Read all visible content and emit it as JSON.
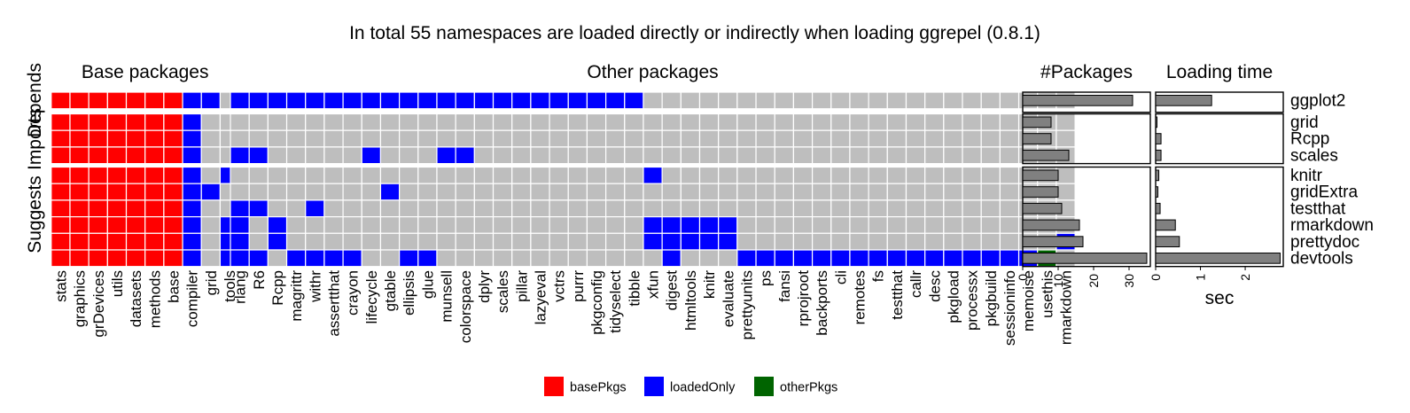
{
  "chart_data": {
    "type": "heatmap",
    "title": "In total 55 namespaces are loaded directly or indirectly when loading ggrepel (0.8.1)",
    "colors": {
      "basePkgs": "#ff0000",
      "loadedOnly": "#0000ff",
      "otherPkgs": "#006400",
      "empty": "#bebebe"
    },
    "legend": {
      "placement": "bottom",
      "entries": [
        "basePkgs",
        "loadedOnly",
        "otherPkgs"
      ]
    },
    "groups": [
      {
        "label": "Depends",
        "rows": [
          "ggplot2"
        ]
      },
      {
        "label": "Imports",
        "rows": [
          "grid",
          "Rcpp",
          "scales"
        ]
      },
      {
        "label": "Suggests",
        "rows": [
          "knitr",
          "gridExtra",
          "testthat",
          "rmarkdown",
          "prettydoc",
          "devtools"
        ]
      }
    ],
    "column_panels": [
      {
        "label": "Base packages",
        "columns": [
          "stats",
          "graphics",
          "grDevices",
          "utils",
          "datasets",
          "methods",
          "base",
          "compiler",
          "grid",
          "tools"
        ]
      },
      {
        "label": "Other packages",
        "columns": [
          "rlang",
          "R6",
          "Rcpp",
          "magrittr",
          "withr",
          "assertthat",
          "crayon",
          "lifecycle",
          "gtable",
          "ellipsis",
          "glue",
          "munsell",
          "colorspace",
          "dplyr",
          "scales",
          "pillar",
          "lazyeval",
          "vctrs",
          "purrr",
          "pkgconfig",
          "tidyselect",
          "tibble",
          "xfun",
          "digest",
          "htmltools",
          "knitr",
          "evaluate",
          "prettyunits",
          "ps",
          "fansi",
          "rprojroot",
          "backports",
          "cli",
          "remotes",
          "fs",
          "testthat",
          "callr",
          "desc",
          "pkgload",
          "processx",
          "pkgbuild",
          "sessioninfo",
          "memoise",
          "usethis",
          "rmarkdown"
        ]
      }
    ],
    "cells": {
      "ggplot2": {
        "basePkgs": [
          "stats",
          "graphics",
          "grDevices",
          "utils",
          "datasets",
          "methods",
          "base"
        ],
        "loadedOnly": [
          "compiler",
          "grid",
          "rlang",
          "R6",
          "Rcpp",
          "magrittr",
          "withr",
          "assertthat",
          "crayon",
          "lifecycle",
          "gtable",
          "ellipsis",
          "glue",
          "munsell",
          "colorspace",
          "dplyr",
          "scales",
          "pillar",
          "lazyeval",
          "vctrs",
          "purrr",
          "pkgconfig",
          "tidyselect",
          "tibble"
        ],
        "otherPkgs": []
      },
      "grid": {
        "basePkgs": [
          "stats",
          "graphics",
          "grDevices",
          "utils",
          "datasets",
          "methods",
          "base"
        ],
        "loadedOnly": [
          "compiler"
        ],
        "otherPkgs": []
      },
      "Rcpp": {
        "basePkgs": [
          "stats",
          "graphics",
          "grDevices",
          "utils",
          "datasets",
          "methods",
          "base"
        ],
        "loadedOnly": [
          "compiler"
        ],
        "otherPkgs": []
      },
      "scales": {
        "basePkgs": [
          "stats",
          "graphics",
          "grDevices",
          "utils",
          "datasets",
          "methods",
          "base"
        ],
        "loadedOnly": [
          "compiler",
          "rlang",
          "R6",
          "lifecycle",
          "munsell",
          "colorspace"
        ],
        "otherPkgs": []
      },
      "knitr": {
        "basePkgs": [
          "stats",
          "graphics",
          "grDevices",
          "utils",
          "datasets",
          "methods",
          "base"
        ],
        "loadedOnly": [
          "compiler",
          "tools",
          "xfun"
        ],
        "otherPkgs": []
      },
      "gridExtra": {
        "basePkgs": [
          "stats",
          "graphics",
          "grDevices",
          "utils",
          "datasets",
          "methods",
          "base"
        ],
        "loadedOnly": [
          "compiler",
          "grid",
          "gtable"
        ],
        "otherPkgs": []
      },
      "testthat": {
        "basePkgs": [
          "stats",
          "graphics",
          "grDevices",
          "utils",
          "datasets",
          "methods",
          "base"
        ],
        "loadedOnly": [
          "compiler",
          "rlang",
          "R6",
          "withr"
        ],
        "otherPkgs": []
      },
      "rmarkdown": {
        "basePkgs": [
          "stats",
          "graphics",
          "grDevices",
          "utils",
          "datasets",
          "methods",
          "base"
        ],
        "loadedOnly": [
          "compiler",
          "tools",
          "rlang",
          "Rcpp",
          "xfun",
          "digest",
          "htmltools",
          "knitr",
          "evaluate"
        ],
        "otherPkgs": []
      },
      "prettydoc": {
        "basePkgs": [
          "stats",
          "graphics",
          "grDevices",
          "utils",
          "datasets",
          "methods",
          "base"
        ],
        "loadedOnly": [
          "compiler",
          "tools",
          "rlang",
          "Rcpp",
          "xfun",
          "digest",
          "htmltools",
          "knitr",
          "evaluate",
          "rmarkdown"
        ],
        "otherPkgs": []
      },
      "devtools": {
        "basePkgs": [
          "stats",
          "graphics",
          "grDevices",
          "utils",
          "datasets",
          "methods",
          "base"
        ],
        "loadedOnly": [
          "compiler",
          "tools",
          "rlang",
          "R6",
          "magrittr",
          "withr",
          "assertthat",
          "crayon",
          "ellipsis",
          "glue",
          "digest",
          "prettyunits",
          "ps",
          "fansi",
          "rprojroot",
          "backports",
          "cli",
          "remotes",
          "fs",
          "testthat",
          "callr",
          "desc",
          "pkgload",
          "processx",
          "pkgbuild",
          "sessioninfo",
          "memoise"
        ],
        "otherPkgs": [
          "usethis"
        ]
      }
    },
    "bar_panels": [
      {
        "title": "#Packages",
        "xlabel": "",
        "xlim": [
          0,
          36
        ],
        "ticks": [
          0,
          10,
          20,
          30
        ],
        "values": {
          "ggplot2": 31,
          "grid": 8,
          "Rcpp": 8,
          "scales": 13,
          "knitr": 10,
          "gridExtra": 10,
          "testthat": 11,
          "rmarkdown": 16,
          "prettydoc": 17,
          "devtools": 35
        }
      },
      {
        "title": "Loading time",
        "xlabel": "sec",
        "xlim": [
          0,
          2.85
        ],
        "ticks": [
          0,
          1,
          2
        ],
        "values": {
          "ggplot2": 1.25,
          "grid": 0.03,
          "Rcpp": 0.12,
          "scales": 0.12,
          "knitr": 0.07,
          "gridExtra": 0.05,
          "testthat": 0.1,
          "rmarkdown": 0.44,
          "prettydoc": 0.53,
          "devtools": 2.78
        }
      }
    ]
  }
}
